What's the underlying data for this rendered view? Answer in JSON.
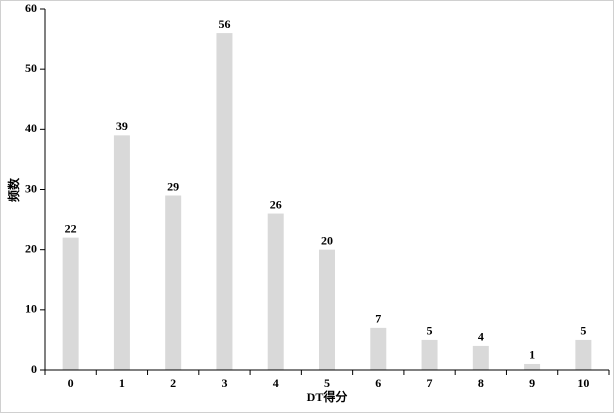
{
  "chart_data": {
    "type": "bar",
    "x_label": "DT得分",
    "y_label": "频数",
    "categories": [
      "0",
      "1",
      "2",
      "3",
      "4",
      "5",
      "6",
      "7",
      "8",
      "9",
      "10"
    ],
    "values": [
      22,
      39,
      29,
      56,
      26,
      20,
      7,
      5,
      4,
      1,
      5
    ],
    "color": "#d9d9d9",
    "ylim": [
      0,
      60
    ],
    "yticks": [
      0,
      10,
      20,
      30,
      40,
      50,
      60
    ],
    "grid": false
  }
}
